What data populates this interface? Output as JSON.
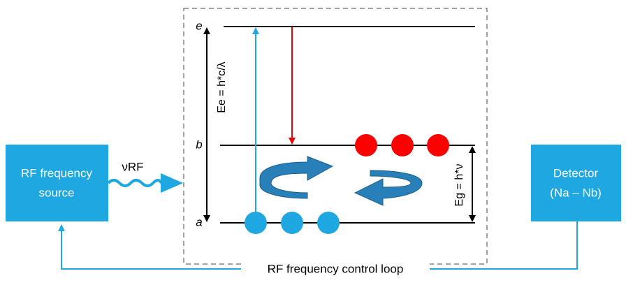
{
  "source": {
    "line1": "RF frequency",
    "line2": "source"
  },
  "signal": "νRF",
  "levels": {
    "e": "e",
    "b": "b",
    "a": "a"
  },
  "energies": {
    "ee": "Ee = h*c/λ",
    "eg": "Eg = h*ν"
  },
  "detector": {
    "line1": "Detector",
    "line2": "(Na – Nb)"
  },
  "loop": "RF frequency control loop"
}
